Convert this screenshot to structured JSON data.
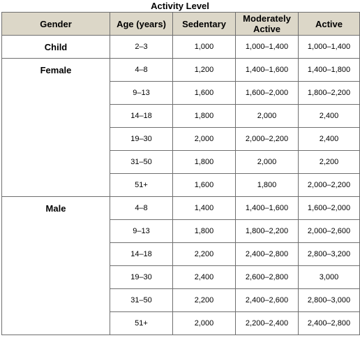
{
  "title": "Activity Level",
  "headers": [
    "Gender",
    "Age (years)",
    "Sedentary",
    "Moderately Active",
    "Active"
  ],
  "groups": [
    {
      "gender": "Child",
      "rows": [
        [
          "2–3",
          "1,000",
          "1,000–1,400",
          "1,000–1,400"
        ]
      ]
    },
    {
      "gender": "Female",
      "rows": [
        [
          "4–8",
          "1,200",
          "1,400–1,600",
          "1,400–1,800"
        ],
        [
          "9–13",
          "1,600",
          "1,600–2,000",
          "1,800–2,200"
        ],
        [
          "14–18",
          "1,800",
          "2,000",
          "2,400"
        ],
        [
          "19–30",
          "2,000",
          "2,000–2,200",
          "2,400"
        ],
        [
          "31–50",
          "1,800",
          "2,000",
          "2,200"
        ],
        [
          "51+",
          "1,600",
          "1,800",
          "2,000–2,200"
        ]
      ]
    },
    {
      "gender": "Male",
      "rows": [
        [
          "4–8",
          "1,400",
          "1,400–1,600",
          "1,600–2,000"
        ],
        [
          "9–13",
          "1,800",
          "1,800–2,200",
          "2,000–2,600"
        ],
        [
          "14–18",
          "2,200",
          "2,400–2,800",
          "2,800–3,200"
        ],
        [
          "19–30",
          "2,400",
          "2,600–2,800",
          "3,000"
        ],
        [
          "31–50",
          "2,200",
          "2,400–2,600",
          "2,800–3,000"
        ],
        [
          "51+",
          "2,000",
          "2,200–2,400",
          "2,400–2,800"
        ]
      ]
    }
  ]
}
